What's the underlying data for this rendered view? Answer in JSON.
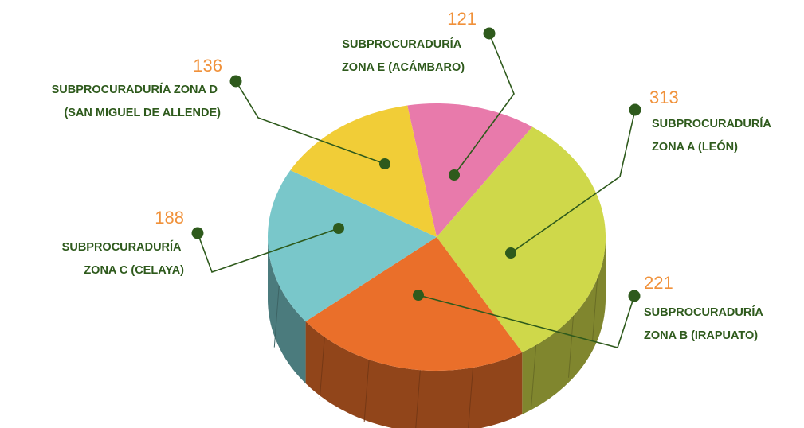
{
  "chart_data": {
    "type": "pie3d",
    "categories": [
      "SUBPROCURADURÍA ZONA E (ACÁMBARO)",
      "SUBPROCURADURÍA ZONA A (LEÓN)",
      "SUBPROCURADURÍA ZONA B (IRAPUATO)",
      "SUBPROCURADURÍA ZONA C (CELAYA)",
      "SUBPROCURADURÍA ZONA D (SAN MIGUEL DE ALLENDE)"
    ],
    "values": [
      121,
      313,
      221,
      188,
      136
    ],
    "colors": [
      "#e87aab",
      "#cfd84a",
      "#ea6f2a",
      "#79c7ca",
      "#f1cd37"
    ]
  }
}
